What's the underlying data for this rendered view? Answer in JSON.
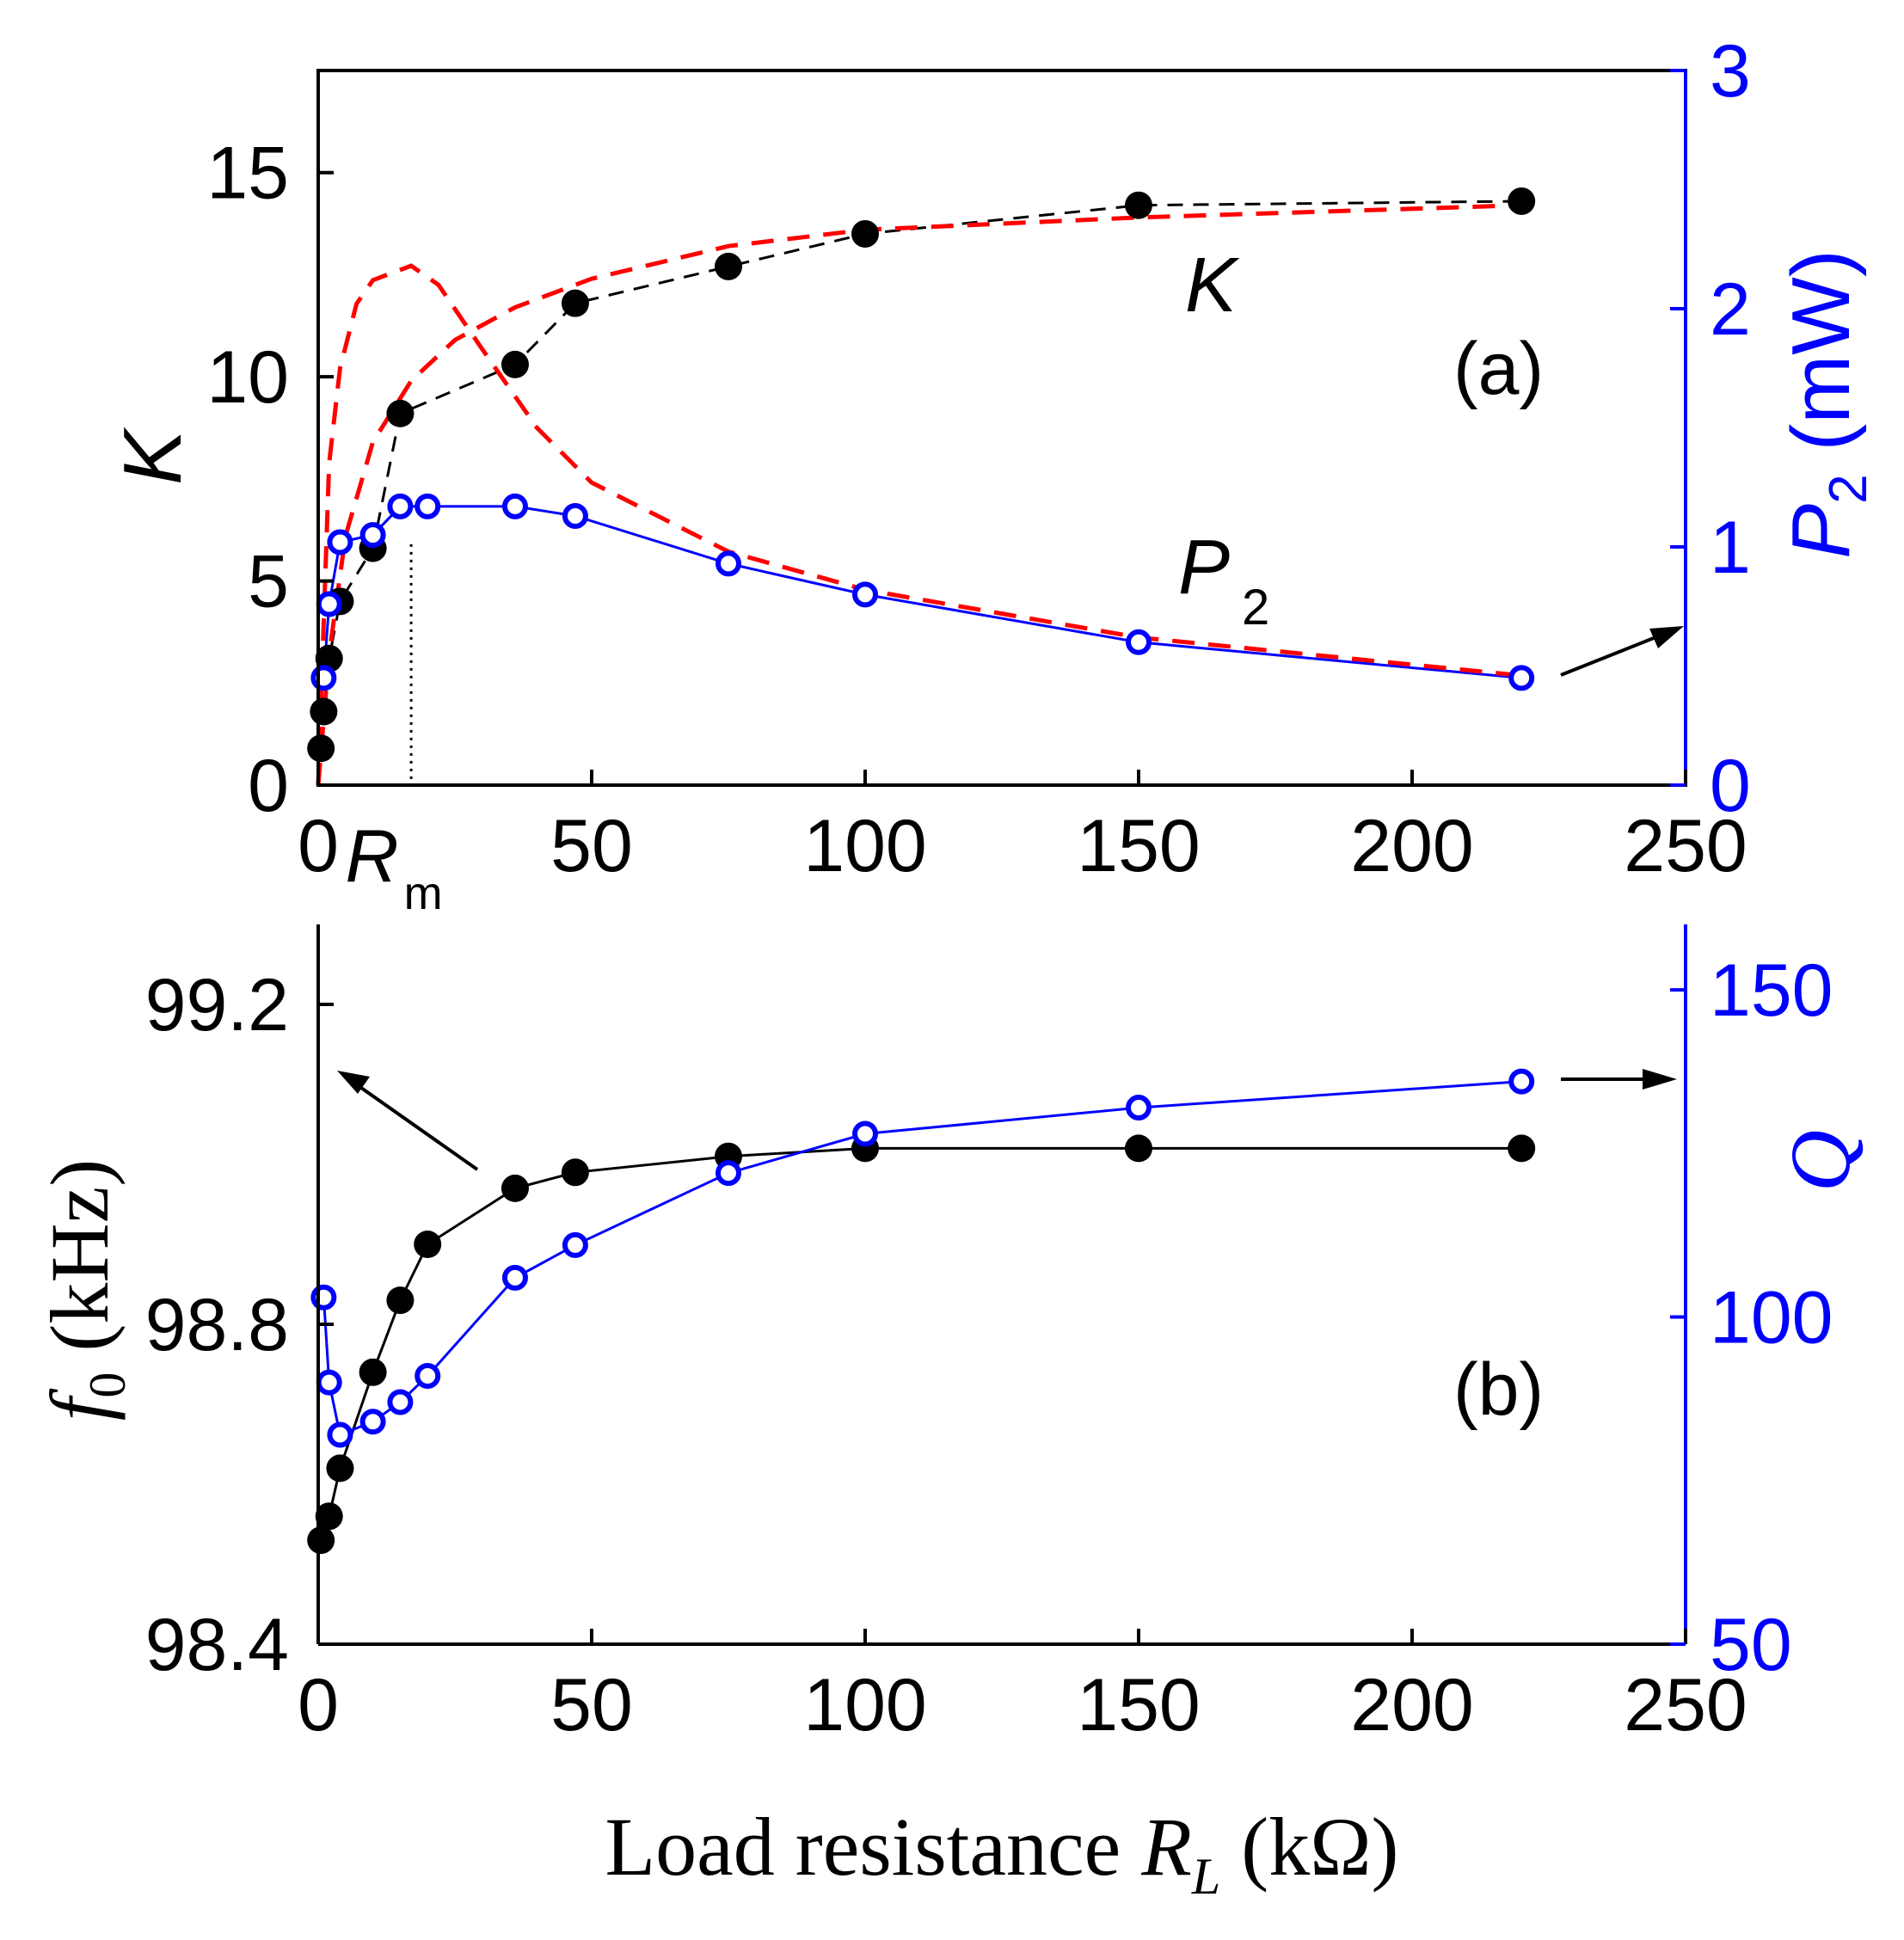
{
  "chart_data": [
    {
      "panel": "(a)",
      "type": "scatter",
      "x_ticks": [
        "0",
        "50",
        "100",
        "150",
        "200",
        "250"
      ],
      "x_special_label": {
        "main": "R",
        "sub": "m",
        "x": 17
      },
      "xlim": [
        0,
        250
      ],
      "y_left": {
        "label": "K",
        "ticks": [
          "0",
          "5",
          "10",
          "15"
        ],
        "lim": [
          0,
          17.5
        ],
        "color": "#000000"
      },
      "y_right": {
        "label_main": "P",
        "label_sub": "2",
        "label_unit": "(mW)",
        "ticks": [
          "0",
          "1",
          "2",
          "3"
        ],
        "lim": [
          0,
          3
        ],
        "color": "#0000ff"
      },
      "annotations": {
        "panel_label": "(a)",
        "curve_K": "K",
        "curve_P2_main": "P",
        "curve_P2_sub": "2"
      },
      "series": [
        {
          "name": "K",
          "axis": "left",
          "marker": "filled-circle",
          "line": "dashed",
          "color": "#000000",
          "x": [
            0.5,
            1,
            2,
            4,
            10,
            15,
            36,
            47,
            75,
            100,
            150,
            220
          ],
          "y": [
            0.9,
            1.8,
            3.1,
            4.5,
            5.8,
            9.1,
            10.3,
            11.8,
            12.7,
            13.5,
            14.2,
            14.3
          ]
        },
        {
          "name": "P2",
          "axis": "right",
          "marker": "open-circle",
          "line": "solid",
          "color": "#0000ff",
          "x": [
            1,
            2,
            4,
            10,
            15,
            20,
            36,
            47,
            75,
            100,
            150,
            220
          ],
          "y": [
            0.45,
            0.76,
            1.02,
            1.05,
            1.17,
            1.17,
            1.17,
            1.13,
            0.93,
            0.8,
            0.6,
            0.45
          ]
        },
        {
          "name": "K theory",
          "axis": "left",
          "line": "dashed",
          "color": "#ff0000",
          "x": [
            0,
            2,
            5,
            10,
            17,
            25,
            36,
            50,
            75,
            100,
            150,
            220
          ],
          "y": [
            0,
            3.2,
            6.1,
            8.4,
            9.9,
            10.9,
            11.7,
            12.4,
            13.2,
            13.6,
            13.9,
            14.2
          ]
        },
        {
          "name": "P2 theory",
          "axis": "right",
          "line": "dashed",
          "color": "#ff0000",
          "x": [
            0,
            2,
            4,
            7,
            10,
            17,
            22,
            30,
            40,
            50,
            75,
            100,
            150,
            220
          ],
          "y": [
            0,
            1.35,
            1.75,
            2.02,
            2.12,
            2.18,
            2.1,
            1.83,
            1.5,
            1.27,
            0.98,
            0.82,
            0.62,
            0.46
          ]
        }
      ],
      "rm_x": 17,
      "rm_k": 5.9
    },
    {
      "panel": "(b)",
      "type": "scatter",
      "x_ticks": [
        "0",
        "50",
        "100",
        "150",
        "200",
        "250"
      ],
      "xlim": [
        0,
        250
      ],
      "xlabel": {
        "main": "Load resistance ",
        "var": "R",
        "sub": "L",
        "unit": " (kΩ)"
      },
      "y_left": {
        "label_var": "f",
        "label_sub": "0",
        "label_unit": " (kHz)",
        "ticks": [
          "98.4",
          "98.8",
          "99.2"
        ],
        "lim": [
          98.4,
          99.3
        ],
        "color": "#000000"
      },
      "y_right": {
        "label": "Q",
        "ticks": [
          "50",
          "100",
          "150"
        ],
        "lim": [
          50,
          160
        ],
        "color": "#0000ff"
      },
      "annotations": {
        "panel_label": "(b)"
      },
      "series": [
        {
          "name": "f0",
          "axis": "left",
          "marker": "filled-circle",
          "line": "solid",
          "color": "#000000",
          "x": [
            0.5,
            2,
            4,
            10,
            15,
            20,
            36,
            47,
            75,
            100,
            150,
            220
          ],
          "y": [
            98.53,
            98.56,
            98.62,
            98.74,
            98.83,
            98.9,
            98.97,
            98.99,
            99.01,
            99.02,
            99.02,
            99.02
          ]
        },
        {
          "name": "Q",
          "axis": "right",
          "marker": "open-circle",
          "line": "solid",
          "color": "#0000ff",
          "x": [
            1,
            2,
            4,
            10,
            15,
            20,
            36,
            47,
            75,
            100,
            150,
            220
          ],
          "y": [
            103,
            90,
            82,
            84,
            87,
            91,
            106,
            111,
            122,
            128,
            132,
            136
          ]
        }
      ]
    }
  ]
}
